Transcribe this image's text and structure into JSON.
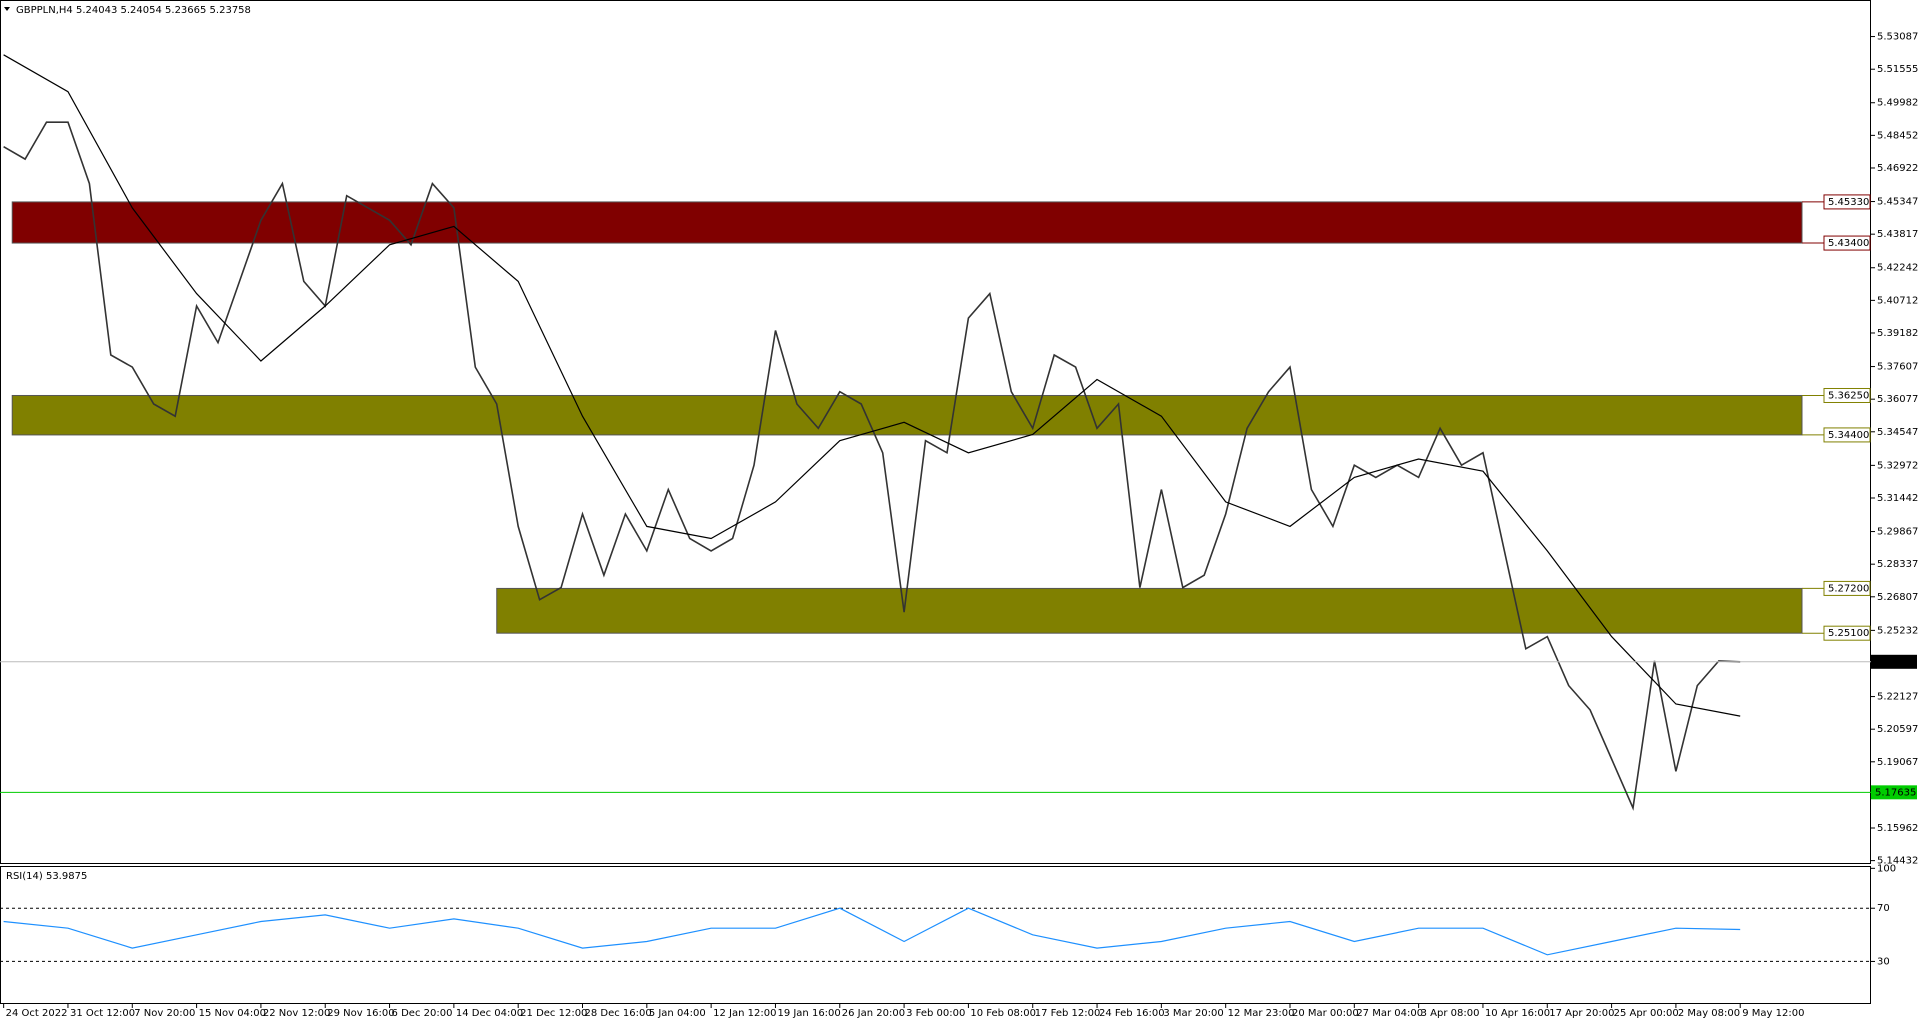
{
  "chart_data": {
    "type": "line",
    "title": "GBPPLN,H4  5.24043 5.24054 5.23665 5.23758",
    "xlim": [
      -1.7,
      871
    ],
    "ylim": [
      5.1432,
      5.5452
    ],
    "yticks": [
      5.53087,
      5.51555,
      5.49982,
      5.48452,
      5.46922,
      5.45347,
      5.43817,
      5.42242,
      5.40712,
      5.39182,
      5.37607,
      5.36077,
      5.34547,
      5.32972,
      5.31442,
      5.29867,
      5.28337,
      5.26807,
      5.25232,
      5.22127,
      5.20597,
      5.19067,
      5.15962,
      5.14432
    ],
    "xticks": [
      {
        "value": 0,
        "label": "24 Oct 2022"
      },
      {
        "value": 30,
        "label": "31 Oct 12:00"
      },
      {
        "value": 60,
        "label": "7 Nov 20:00"
      },
      {
        "value": 90,
        "label": "15 Nov 04:00"
      },
      {
        "value": 120,
        "label": "22 Nov 12:00"
      },
      {
        "value": 150,
        "label": "29 Nov 16:00"
      },
      {
        "value": 180,
        "label": "6 Dec 20:00"
      },
      {
        "value": 210,
        "label": "14 Dec 04:00"
      },
      {
        "value": 240,
        "label": "21 Dec 12:00"
      },
      {
        "value": 270,
        "label": "28 Dec 16:00"
      },
      {
        "value": 300,
        "label": "5 Jan 04:00"
      },
      {
        "value": 330,
        "label": "12 Jan 12:00"
      },
      {
        "value": 360,
        "label": "19 Jan 16:00"
      },
      {
        "value": 390,
        "label": "26 Jan 20:00"
      },
      {
        "value": 420,
        "label": "3 Feb 00:00"
      },
      {
        "value": 450,
        "label": "10 Feb 08:00"
      },
      {
        "value": 480,
        "label": "17 Feb 12:00"
      },
      {
        "value": 510,
        "label": "24 Feb 16:00"
      },
      {
        "value": 540,
        "label": "3 Mar 20:00"
      },
      {
        "value": 570,
        "label": "12 Mar 23:00"
      },
      {
        "value": 600,
        "label": "20 Mar 00:00"
      },
      {
        "value": 630,
        "label": "27 Mar 04:00"
      },
      {
        "value": 660,
        "label": "3 Apr 08:00"
      },
      {
        "value": 690,
        "label": "10 Apr 16:00"
      },
      {
        "value": 720,
        "label": "17 Apr 20:00"
      },
      {
        "value": 750,
        "label": "25 Apr 00:00"
      },
      {
        "value": 780,
        "label": "2 May 08:00"
      },
      {
        "value": 810,
        "label": "9 May 12:00"
      }
    ],
    "series": [
      {
        "color": "#333333",
        "x": [
          0,
          10,
          20,
          30,
          40,
          50,
          60,
          70,
          80,
          90,
          100,
          110,
          120,
          130,
          140,
          150,
          160,
          170,
          180,
          190,
          200,
          210,
          220,
          230,
          240,
          250,
          260,
          270,
          280,
          290,
          300,
          310,
          320,
          330,
          340,
          350,
          360,
          370,
          380,
          390,
          400,
          410,
          420,
          430,
          440,
          450,
          460,
          470,
          480,
          490,
          500,
          510,
          520,
          530,
          540,
          550,
          560,
          570,
          580,
          590,
          600,
          610,
          620,
          630,
          640,
          650,
          660,
          670,
          680,
          690,
          700,
          710,
          720,
          730,
          740,
          750,
          760,
          770,
          780,
          790,
          800,
          810
        ],
        "values": [
          5.4792,
          5.4734,
          5.4907,
          5.4907,
          5.4619,
          5.3815,
          5.3758,
          5.3585,
          5.3528,
          5.4045,
          5.3873,
          5.416,
          5.4447,
          5.4619,
          5.416,
          5.4045,
          5.4562,
          5.4505,
          5.4447,
          5.4332,
          5.4619,
          5.4505,
          5.3758,
          5.3585,
          5.3011,
          5.2667,
          5.2724,
          5.3069,
          5.2782,
          5.3069,
          5.2896,
          5.3184,
          5.2954,
          5.2896,
          5.2954,
          5.3298,
          5.393,
          5.3585,
          5.3471,
          5.3643,
          5.3585,
          5.3356,
          5.2609,
          5.3413,
          5.3356,
          5.3988,
          5.4103,
          5.3643,
          5.3471,
          5.3815,
          5.3758,
          5.3471,
          5.3585,
          5.2724,
          5.3184,
          5.2724,
          5.2782,
          5.3069,
          5.3471,
          5.3643,
          5.3758,
          5.3184,
          5.3011,
          5.3298,
          5.3241,
          5.3298,
          5.3241,
          5.3471,
          5.3298,
          5.3356,
          5.2896,
          5.2437,
          5.2494,
          5.2264,
          5.215,
          5.192,
          5.169,
          5.238,
          5.1862,
          5.2264,
          5.238,
          5.2376
        ]
      },
      {
        "color": "#000000",
        "x": [
          0,
          30,
          60,
          90,
          120,
          150,
          180,
          210,
          240,
          270,
          300,
          330,
          360,
          390,
          420,
          450,
          480,
          510,
          540,
          570,
          600,
          630,
          660,
          690,
          720,
          750,
          780,
          810
        ],
        "values": [
          5.5223,
          5.505,
          5.4505,
          5.4103,
          5.3787,
          5.4045,
          5.4332,
          5.4418,
          5.416,
          5.3528,
          5.3011,
          5.2954,
          5.3126,
          5.3413,
          5.3499,
          5.3356,
          5.3442,
          5.37,
          5.3528,
          5.3126,
          5.3011,
          5.3241,
          5.3327,
          5.327,
          5.2896,
          5.2494,
          5.2178,
          5.2121
        ]
      }
    ],
    "zones": [
      {
        "color": "#800000",
        "start": 4,
        "from": {
          "value": 5.434,
          "label": "5.43400"
        },
        "to": {
          "value": 5.4533,
          "label": "5.45330"
        }
      },
      {
        "color": "#808000",
        "start": 4,
        "from": {
          "value": 5.344,
          "label": "5.34400"
        },
        "to": {
          "value": 5.3625,
          "label": "5.36250"
        }
      },
      {
        "color": "#808000",
        "start": 230,
        "from": {
          "value": 5.251,
          "label": "5.25100"
        },
        "to": {
          "value": 5.272,
          "label": "5.27200"
        }
      }
    ],
    "current_price": 5.23758,
    "support_line": {
      "value": 5.17635,
      "color": "#00cc00"
    },
    "rsi": {
      "title": "RSI(14) 53.9875",
      "color": "#1e90ff",
      "ylim": [
        -2,
        101
      ],
      "yticks": [
        30,
        70,
        100
      ],
      "levels": [
        30,
        70
      ],
      "x": [
        0,
        30,
        60,
        90,
        120,
        150,
        180,
        210,
        240,
        270,
        300,
        330,
        360,
        390,
        420,
        450,
        480,
        510,
        540,
        570,
        600,
        630,
        660,
        690,
        720,
        750,
        780,
        810
      ],
      "values": [
        60,
        55,
        40,
        50,
        60,
        65,
        55,
        62,
        55,
        40,
        45,
        55,
        55,
        70,
        45,
        70,
        50,
        40,
        45,
        55,
        60,
        45,
        55,
        55,
        35,
        45,
        55,
        53.9875
      ]
    }
  }
}
